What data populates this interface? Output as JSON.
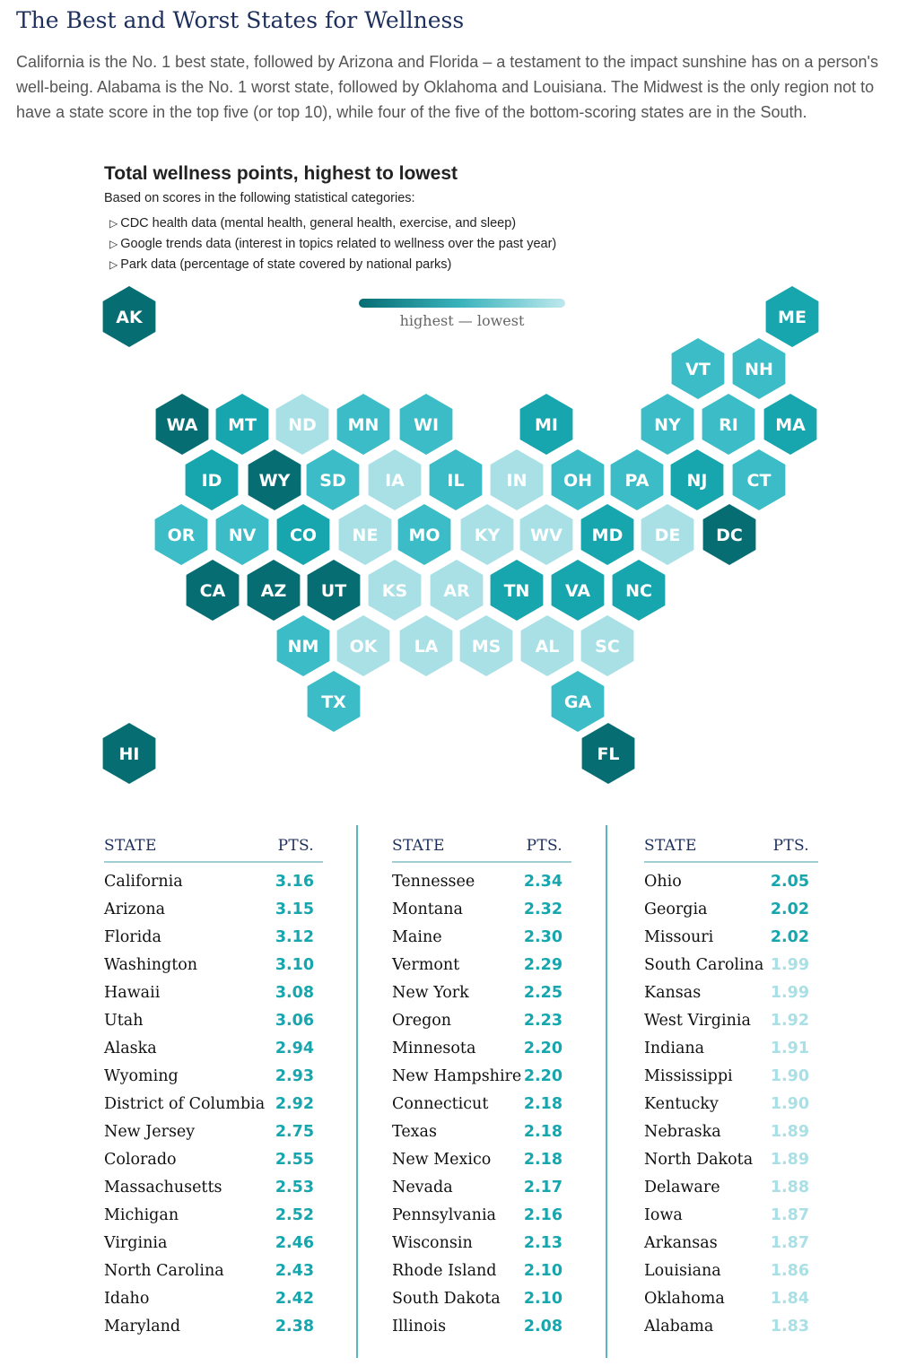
{
  "title": "The Best and Worst States for Wellness",
  "intro": "California is the No. 1 best state, followed by Arizona and Florida – a testament to the impact sunshine has on a person's well-being. Alabama is the No. 1 worst state, followed by Oklahoma and Louisiana. The Midwest is the only region not to have a state score in the top five (or top 10), while four of the five of the bottom-scoring states are in the South.",
  "chart": {
    "title": "Total wellness points, highest to lowest",
    "subtitle": "Based on scores in the following statistical categories:",
    "criteria": [
      "CDC health data (mental health, general health, exercise, and sleep)",
      "Google trends data (interest in topics related to wellness over the past year)",
      "Park data (percentage of state covered by national parks)"
    ],
    "legend": "highest — lowest"
  },
  "colors": {
    "tier1": "#066d73",
    "tier2": "#17a6ae",
    "tier3": "#3bbcc6",
    "tier4": "#a9e0e6",
    "text_dark": "#1d2f5c"
  },
  "chart_data": {
    "type": "table",
    "headers": {
      "state": "STATE",
      "points": "PTS."
    },
    "rows": [
      {
        "state": "California",
        "points": 3.16
      },
      {
        "state": "Arizona",
        "points": 3.15
      },
      {
        "state": "Florida",
        "points": 3.12
      },
      {
        "state": "Washington",
        "points": 3.1
      },
      {
        "state": "Hawaii",
        "points": 3.08
      },
      {
        "state": "Utah",
        "points": 3.06
      },
      {
        "state": "Alaska",
        "points": 2.94
      },
      {
        "state": "Wyoming",
        "points": 2.93
      },
      {
        "state": "District of Columbia",
        "points": 2.92
      },
      {
        "state": "New Jersey",
        "points": 2.75
      },
      {
        "state": "Colorado",
        "points": 2.55
      },
      {
        "state": "Massachusetts",
        "points": 2.53
      },
      {
        "state": "Michigan",
        "points": 2.52
      },
      {
        "state": "Virginia",
        "points": 2.46
      },
      {
        "state": "North Carolina",
        "points": 2.43
      },
      {
        "state": "Idaho",
        "points": 2.42
      },
      {
        "state": "Maryland",
        "points": 2.38
      },
      {
        "state": "Tennessee",
        "points": 2.34
      },
      {
        "state": "Montana",
        "points": 2.32
      },
      {
        "state": "Maine",
        "points": 2.3
      },
      {
        "state": "Vermont",
        "points": 2.29
      },
      {
        "state": "New York",
        "points": 2.25
      },
      {
        "state": "Oregon",
        "points": 2.23
      },
      {
        "state": "Minnesota",
        "points": 2.2
      },
      {
        "state": "New Hampshire",
        "points": 2.2
      },
      {
        "state": "Connecticut",
        "points": 2.18
      },
      {
        "state": "Texas",
        "points": 2.18
      },
      {
        "state": "New Mexico",
        "points": 2.18
      },
      {
        "state": "Nevada",
        "points": 2.17
      },
      {
        "state": "Pennsylvania",
        "points": 2.16
      },
      {
        "state": "Wisconsin",
        "points": 2.13
      },
      {
        "state": "Rhode Island",
        "points": 2.1
      },
      {
        "state": "South Dakota",
        "points": 2.1
      },
      {
        "state": "Illinois",
        "points": 2.08
      },
      {
        "state": "Ohio",
        "points": 2.05
      },
      {
        "state": "Georgia",
        "points": 2.02
      },
      {
        "state": "Missouri",
        "points": 2.02
      },
      {
        "state": "South Carolina",
        "points": 1.99
      },
      {
        "state": "Kansas",
        "points": 1.99
      },
      {
        "state": "West Virginia",
        "points": 1.92
      },
      {
        "state": "Indiana",
        "points": 1.91
      },
      {
        "state": "Mississippi",
        "points": 1.9
      },
      {
        "state": "Kentucky",
        "points": 1.9
      },
      {
        "state": "Nebraska",
        "points": 1.89
      },
      {
        "state": "North Dakota",
        "points": 1.89
      },
      {
        "state": "Delaware",
        "points": 1.88
      },
      {
        "state": "Iowa",
        "points": 1.87
      },
      {
        "state": "Arkansas",
        "points": 1.87
      },
      {
        "state": "Louisiana",
        "points": 1.86
      },
      {
        "state": "Oklahoma",
        "points": 1.84
      },
      {
        "state": "Alabama",
        "points": 1.83
      }
    ],
    "hex_map": [
      {
        "abbr": "AK",
        "points": 2.94
      },
      {
        "abbr": "ME",
        "points": 2.3
      },
      {
        "abbr": "VT",
        "points": 2.29
      },
      {
        "abbr": "NH",
        "points": 2.2
      },
      {
        "abbr": "WA",
        "points": 3.1
      },
      {
        "abbr": "MT",
        "points": 2.32
      },
      {
        "abbr": "ND",
        "points": 1.89
      },
      {
        "abbr": "MN",
        "points": 2.2
      },
      {
        "abbr": "WI",
        "points": 2.13
      },
      {
        "abbr": "MI",
        "points": 2.52
      },
      {
        "abbr": "NY",
        "points": 2.25
      },
      {
        "abbr": "RI",
        "points": 2.1
      },
      {
        "abbr": "MA",
        "points": 2.53
      },
      {
        "abbr": "ID",
        "points": 2.42
      },
      {
        "abbr": "WY",
        "points": 2.93
      },
      {
        "abbr": "SD",
        "points": 2.1
      },
      {
        "abbr": "IA",
        "points": 1.87
      },
      {
        "abbr": "IL",
        "points": 2.08
      },
      {
        "abbr": "IN",
        "points": 1.91
      },
      {
        "abbr": "OH",
        "points": 2.05
      },
      {
        "abbr": "PA",
        "points": 2.16
      },
      {
        "abbr": "NJ",
        "points": 2.75
      },
      {
        "abbr": "CT",
        "points": 2.18
      },
      {
        "abbr": "OR",
        "points": 2.23
      },
      {
        "abbr": "NV",
        "points": 2.17
      },
      {
        "abbr": "CO",
        "points": 2.55
      },
      {
        "abbr": "NE",
        "points": 1.89
      },
      {
        "abbr": "MO",
        "points": 2.02
      },
      {
        "abbr": "KY",
        "points": 1.9
      },
      {
        "abbr": "WV",
        "points": 1.92
      },
      {
        "abbr": "MD",
        "points": 2.38
      },
      {
        "abbr": "DE",
        "points": 1.88
      },
      {
        "abbr": "DC",
        "points": 2.92
      },
      {
        "abbr": "CA",
        "points": 3.16
      },
      {
        "abbr": "AZ",
        "points": 3.15
      },
      {
        "abbr": "UT",
        "points": 3.06
      },
      {
        "abbr": "KS",
        "points": 1.99
      },
      {
        "abbr": "AR",
        "points": 1.87
      },
      {
        "abbr": "TN",
        "points": 2.34
      },
      {
        "abbr": "VA",
        "points": 2.46
      },
      {
        "abbr": "NC",
        "points": 2.43
      },
      {
        "abbr": "NM",
        "points": 2.18
      },
      {
        "abbr": "OK",
        "points": 1.84
      },
      {
        "abbr": "LA",
        "points": 1.86
      },
      {
        "abbr": "MS",
        "points": 1.9
      },
      {
        "abbr": "AL",
        "points": 1.83
      },
      {
        "abbr": "SC",
        "points": 1.99
      },
      {
        "abbr": "TX",
        "points": 2.18
      },
      {
        "abbr": "GA",
        "points": 2.02
      },
      {
        "abbr": "HI",
        "points": 3.08
      },
      {
        "abbr": "FL",
        "points": 3.12
      }
    ]
  }
}
